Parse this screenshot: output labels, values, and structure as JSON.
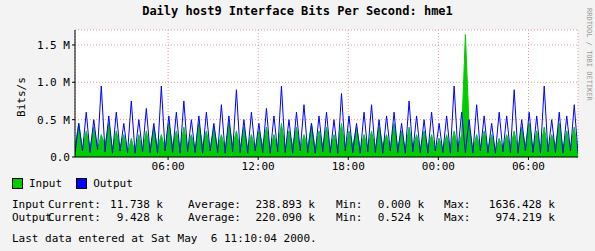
{
  "chart_data": {
    "type": "line",
    "title": "Daily host9 Interface Bits Per Second: hme1",
    "y_label": "Bits/s",
    "x": [
      0,
      0.25,
      0.5,
      0.75,
      1,
      1.25,
      1.5,
      1.75,
      2,
      2.25,
      2.5,
      2.75,
      3,
      3.25,
      3.5,
      3.75,
      4,
      4.25,
      4.5,
      4.75,
      5,
      5.25,
      5.5,
      5.75,
      6,
      6.25,
      6.5,
      6.75,
      7,
      7.25,
      7.5,
      7.75,
      8,
      8.25,
      8.5,
      8.75,
      9,
      9.25,
      9.5,
      9.75,
      10,
      10.25,
      10.5,
      10.75,
      11,
      11.25,
      11.5,
      11.75,
      12,
      12.25,
      12.5,
      12.75,
      13,
      13.25,
      13.5,
      13.75,
      14,
      14.25,
      14.5,
      14.75,
      15,
      15.25,
      15.5,
      15.75,
      16,
      16.25,
      16.5,
      16.75,
      17,
      17.25,
      17.5,
      17.75,
      18,
      18.25,
      18.5,
      18.75,
      19,
      19.25,
      19.5,
      19.75,
      20,
      20.25,
      20.5,
      20.75,
      21,
      21.25,
      21.5,
      21.75,
      22,
      22.25,
      22.5,
      22.75,
      23,
      23.25,
      23.5,
      23.75,
      24,
      24.25,
      24.5,
      24.75,
      25,
      25.25,
      25.5,
      25.75,
      26,
      26.25,
      26.5,
      26.75,
      27,
      27.25,
      27.5,
      27.75,
      28,
      28.25,
      28.5,
      28.75,
      29,
      29.25,
      29.5,
      29.75,
      30,
      30.25,
      30.5,
      30.75,
      31,
      31.25,
      31.5,
      31.75,
      32,
      32.25,
      32.5,
      32.75,
      33,
      33.25,
      33.5
    ],
    "xlim": [
      0,
      33.5
    ],
    "xticks": [
      {
        "value": 6.2,
        "label": "06:00"
      },
      {
        "value": 12.2,
        "label": "12:00"
      },
      {
        "value": 18.2,
        "label": "18:00"
      },
      {
        "value": 24.2,
        "label": "00:00"
      },
      {
        "value": 30.2,
        "label": "06:00"
      }
    ],
    "ylim": [
      0,
      1.7
    ],
    "yticks": [
      {
        "value": 0,
        "label": "0.0"
      },
      {
        "value": 0.5,
        "label": "0.5 M"
      },
      {
        "value": 1,
        "label": "1.0 M"
      },
      {
        "value": 1.5,
        "label": "1.5 M"
      }
    ],
    "grid": true,
    "legend": "bottom",
    "series": [
      {
        "name": "Input",
        "type": "area",
        "color": "#00cc00",
        "values": [
          0.15,
          0.45,
          0.1,
          0.35,
          0.12,
          0.4,
          0.1,
          0.3,
          0.15,
          0.45,
          0.1,
          0.35,
          0.12,
          0.3,
          0.05,
          0.25,
          0.05,
          0.3,
          0.08,
          0.35,
          0.1,
          0.4,
          0.12,
          0.3,
          0.1,
          0.45,
          0.15,
          0.35,
          0.1,
          0.4,
          0.12,
          0.3,
          0.1,
          0.45,
          0.15,
          0.35,
          0.1,
          0.4,
          0.12,
          0.3,
          0.1,
          0.45,
          0.15,
          0.35,
          0.1,
          0.4,
          0.12,
          0.3,
          0.1,
          0.35,
          0.15,
          0.4,
          0.1,
          0.3,
          0.12,
          0.45,
          0.1,
          0.35,
          0.15,
          0.4,
          0.1,
          0.3,
          0.12,
          0.45,
          0.1,
          0.35,
          0.15,
          0.4,
          0.1,
          0.3,
          0.12,
          0.45,
          0.1,
          0.35,
          0.15,
          0.4,
          0.1,
          0.3,
          0.12,
          0.35,
          0.1,
          0.4,
          0.15,
          0.3,
          0.1,
          0.45,
          0.12,
          0.35,
          0.1,
          0.4,
          0.12,
          0.3,
          0.1,
          0.35,
          0.12,
          0.3,
          0.08,
          0.25,
          0.1,
          0.3,
          0.1,
          0.35,
          0.12,
          0.3,
          1.64,
          0.4,
          0.1,
          0.3,
          0.12,
          0.35,
          0.1,
          0.3,
          0.08,
          0.25,
          0.1,
          0.3,
          0.12,
          0.35,
          0.1,
          0.4,
          0.15,
          0.45,
          0.1,
          0.35,
          0.12,
          0.4,
          0.1,
          0.3,
          0.15,
          0.45,
          0.1,
          0.35,
          0.12,
          0.4,
          0.05
        ]
      },
      {
        "name": "Output",
        "type": "line",
        "color": "#0000ff",
        "values": [
          0.05,
          0.45,
          0.08,
          0.6,
          0.06,
          0.5,
          0.1,
          0.95,
          0.07,
          0.55,
          0.05,
          0.6,
          0.08,
          0.45,
          0.06,
          0.75,
          0.05,
          0.5,
          0.07,
          0.65,
          0.06,
          0.45,
          0.05,
          0.95,
          0.08,
          0.55,
          0.06,
          0.6,
          0.05,
          0.75,
          0.07,
          0.5,
          0.06,
          0.55,
          0.05,
          0.6,
          0.08,
          0.45,
          0.06,
          0.7,
          0.05,
          0.55,
          0.07,
          0.9,
          0.06,
          0.5,
          0.05,
          0.6,
          0.08,
          0.45,
          0.06,
          0.65,
          0.05,
          0.55,
          0.07,
          0.95,
          0.06,
          0.5,
          0.05,
          0.6,
          0.08,
          0.7,
          0.06,
          0.45,
          0.05,
          0.55,
          0.07,
          0.6,
          0.06,
          0.5,
          0.05,
          0.85,
          0.08,
          0.55,
          0.06,
          0.45,
          0.05,
          0.6,
          0.07,
          0.7,
          0.06,
          0.5,
          0.05,
          0.55,
          0.08,
          0.6,
          0.06,
          0.45,
          0.05,
          0.75,
          0.07,
          0.55,
          0.06,
          0.5,
          0.05,
          0.6,
          0.08,
          0.45,
          0.06,
          0.55,
          0.05,
          0.95,
          0.07,
          0.6,
          0.06,
          0.5,
          0.05,
          0.7,
          0.08,
          0.55,
          0.06,
          0.45,
          0.05,
          0.6,
          0.07,
          0.55,
          0.06,
          0.9,
          0.05,
          0.5,
          0.08,
          0.6,
          0.06,
          0.55,
          0.05,
          0.95,
          0.07,
          0.5,
          0.06,
          0.6,
          0.05,
          0.55,
          0.08,
          0.7,
          0.05
        ]
      }
    ]
  },
  "stats": {
    "columns": [
      "Current:",
      "Average:",
      "Min:",
      "Max:"
    ],
    "rows": [
      {
        "name": "Input",
        "values": [
          "11.738 k",
          "238.893 k",
          "0.000 k",
          "1636.428 k"
        ]
      },
      {
        "name": "Output",
        "values": [
          "9.428 k",
          "220.090 k",
          "0.524 k",
          "974.219 k"
        ]
      }
    ]
  },
  "footer": "Last data entered at Sat May  6 11:10:04 2000.",
  "credit": "RRDTOOL / TOBI OETIKER"
}
